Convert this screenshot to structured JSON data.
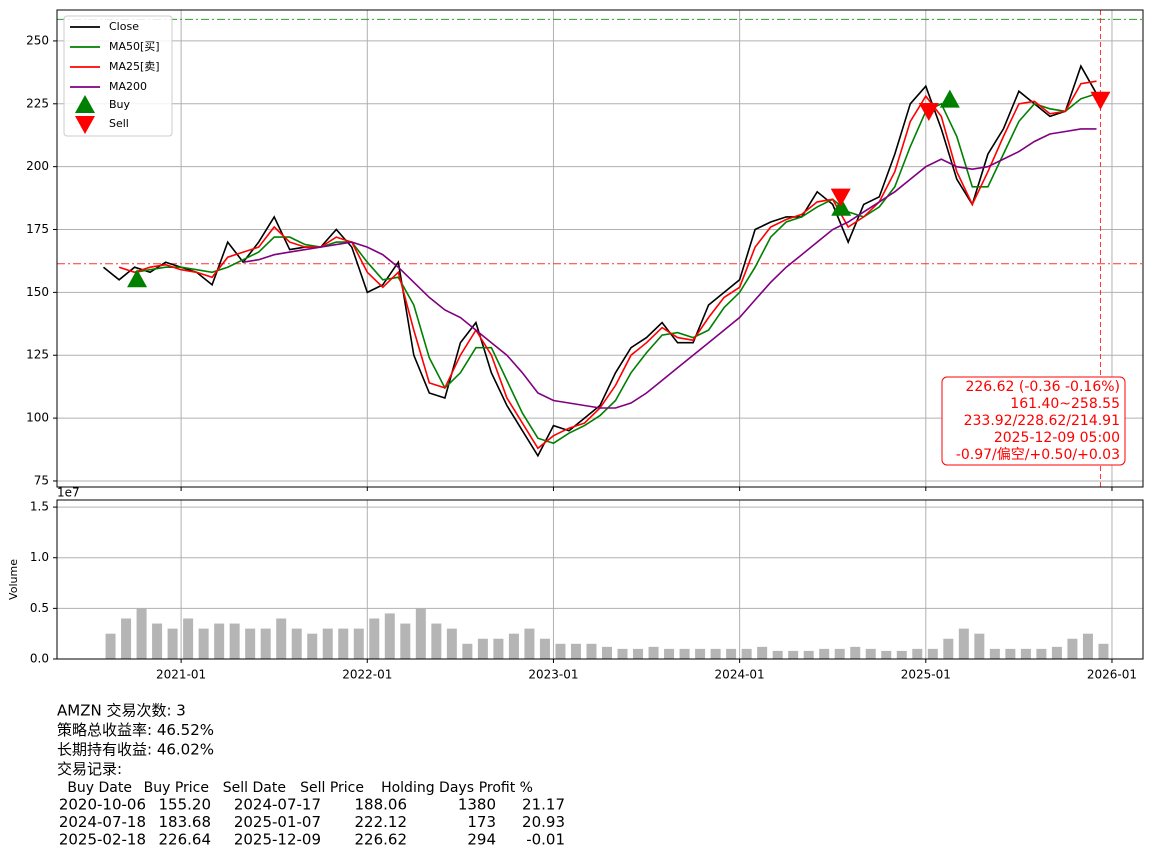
{
  "chart_data": [
    {
      "type": "line",
      "x": [
        "2020-08",
        "2020-09",
        "2020-10",
        "2020-11",
        "2020-12",
        "2021-01",
        "2021-02",
        "2021-03",
        "2021-04",
        "2021-05",
        "2021-06",
        "2021-07",
        "2021-08",
        "2021-09",
        "2021-10",
        "2021-11",
        "2021-12",
        "2022-01",
        "2022-02",
        "2022-03",
        "2022-04",
        "2022-05",
        "2022-06",
        "2022-07",
        "2022-08",
        "2022-09",
        "2022-10",
        "2022-11",
        "2022-12",
        "2023-01",
        "2023-02",
        "2023-03",
        "2023-04",
        "2023-05",
        "2023-06",
        "2023-07",
        "2023-08",
        "2023-09",
        "2023-10",
        "2023-11",
        "2023-12",
        "2024-01",
        "2024-02",
        "2024-03",
        "2024-04",
        "2024-05",
        "2024-06",
        "2024-07",
        "2024-08",
        "2024-09",
        "2024-10",
        "2024-11",
        "2024-12",
        "2025-01",
        "2025-02",
        "2025-03",
        "2025-04",
        "2025-05",
        "2025-06",
        "2025-07",
        "2025-08",
        "2025-09",
        "2025-10",
        "2025-11",
        "2025-12"
      ],
      "series": [
        {
          "name": "Close",
          "color": "#000000",
          "values": [
            160,
            155,
            160,
            158,
            162,
            160,
            158,
            153,
            170,
            162,
            170,
            180,
            167,
            168,
            168,
            175,
            168,
            150,
            153,
            162,
            125,
            110,
            108,
            130,
            138,
            118,
            105,
            95,
            85,
            97,
            95,
            100,
            105,
            118,
            128,
            132,
            138,
            130,
            130,
            145,
            150,
            155,
            175,
            178,
            180,
            180,
            190,
            185,
            170,
            185,
            188,
            205,
            225,
            232,
            215,
            195,
            185,
            205,
            215,
            230,
            225,
            220,
            222,
            240,
            229
          ]
        },
        {
          "name": "MA50[买]",
          "color": "#008000",
          "values": [
            null,
            null,
            158,
            159,
            160,
            160,
            159,
            158,
            160,
            163,
            166,
            172,
            172,
            169,
            168,
            170,
            170,
            162,
            155,
            156,
            145,
            124,
            112,
            118,
            128,
            128,
            115,
            102,
            92,
            90,
            94,
            97,
            101,
            107,
            118,
            126,
            133,
            134,
            132,
            135,
            144,
            150,
            160,
            172,
            178,
            180,
            184,
            187,
            182,
            180,
            184,
            192,
            208,
            222,
            225,
            212,
            192,
            192,
            205,
            218,
            225,
            223,
            222,
            227,
            229
          ]
        },
        {
          "name": "MA25[卖]",
          "color": "#ff0000",
          "values": [
            null,
            160,
            158,
            160,
            161,
            159,
            158,
            156,
            164,
            166,
            168,
            176,
            170,
            168,
            168,
            172,
            170,
            158,
            152,
            158,
            135,
            114,
            112,
            125,
            135,
            125,
            108,
            98,
            88,
            93,
            96,
            98,
            104,
            113,
            125,
            130,
            136,
            132,
            131,
            140,
            148,
            152,
            168,
            176,
            179,
            181,
            186,
            187,
            176,
            180,
            186,
            198,
            218,
            228,
            220,
            198,
            185,
            198,
            212,
            225,
            226,
            221,
            222,
            233,
            234
          ]
        },
        {
          "name": "MA200",
          "color": "#800080",
          "values": [
            null,
            null,
            null,
            null,
            null,
            null,
            null,
            null,
            null,
            162,
            163,
            165,
            166,
            167,
            168,
            169,
            170,
            168,
            165,
            160,
            154,
            148,
            143,
            140,
            135,
            130,
            125,
            118,
            110,
            107,
            106,
            105,
            104,
            104,
            106,
            110,
            115,
            120,
            125,
            130,
            135,
            140,
            147,
            154,
            160,
            165,
            170,
            175,
            178,
            182,
            186,
            190,
            195,
            200,
            203,
            200,
            199,
            200,
            203,
            206,
            210,
            213,
            214,
            215,
            215
          ]
        }
      ],
      "markers": [
        {
          "name": "Buy",
          "color": "#008000",
          "marker": "up",
          "x": [
            "2020-10-06",
            "2024-07-18",
            "2025-02-18"
          ],
          "values": [
            155.2,
            183.68,
            226.64
          ]
        },
        {
          "name": "Sell",
          "color": "#ff0000",
          "marker": "down",
          "x": [
            "2024-07-17",
            "2025-01-07",
            "2025-12-09"
          ],
          "values": [
            188.06,
            222.12,
            226.62
          ]
        }
      ],
      "hlines": [
        {
          "value": 258.55,
          "color": "#2ca02c"
        },
        {
          "value": 161.4,
          "color": "#ff3030"
        }
      ],
      "vline": "2025-12-09",
      "annotation_lines": [
        "226.62 (-0.36 -0.16%)",
        "161.40~258.55",
        "233.92/228.62/214.91",
        "2025-12-09 05:00",
        "-0.97/偏空/+0.50/+0.03"
      ],
      "xlim": [
        "2020-05",
        "2026-03"
      ],
      "xticks": [
        "2021-01",
        "2022-01",
        "2023-01",
        "2024-01",
        "2025-01",
        "2026-01"
      ],
      "ylim": [
        72.6,
        262.3
      ],
      "yticks": [
        75,
        100,
        125,
        150,
        175,
        200,
        225,
        250
      ],
      "grid": true,
      "legend": "upper left"
    },
    {
      "type": "bar",
      "ylabel": "Volume",
      "offset_label": "1e7",
      "x": [
        "2020-08",
        "2020-09",
        "2020-10",
        "2020-11",
        "2020-12",
        "2021-01",
        "2021-02",
        "2021-03",
        "2021-04",
        "2021-05",
        "2021-06",
        "2021-07",
        "2021-08",
        "2021-09",
        "2021-10",
        "2021-11",
        "2021-12",
        "2022-01",
        "2022-02",
        "2022-03",
        "2022-04",
        "2022-05",
        "2022-06",
        "2022-07",
        "2022-08",
        "2022-09",
        "2022-10",
        "2022-11",
        "2022-12",
        "2023-01",
        "2023-02",
        "2023-03",
        "2023-04",
        "2023-05",
        "2023-06",
        "2023-07",
        "2023-08",
        "2023-09",
        "2023-10",
        "2023-11",
        "2023-12",
        "2024-01",
        "2024-02",
        "2024-03",
        "2024-04",
        "2024-05",
        "2024-06",
        "2024-07",
        "2024-08",
        "2024-09",
        "2024-10",
        "2024-11",
        "2024-12",
        "2025-01",
        "2025-02",
        "2025-03",
        "2025-04",
        "2025-05",
        "2025-06",
        "2025-07",
        "2025-08",
        "2025-09",
        "2025-10",
        "2025-11",
        "2025-12"
      ],
      "values": [
        0.25,
        0.4,
        0.5,
        0.35,
        0.3,
        0.4,
        0.3,
        0.35,
        0.35,
        0.3,
        0.3,
        0.4,
        0.3,
        0.25,
        0.3,
        0.3,
        0.3,
        0.4,
        0.45,
        0.35,
        0.5,
        0.35,
        0.3,
        0.15,
        0.2,
        0.2,
        0.25,
        0.3,
        0.2,
        0.15,
        0.15,
        0.15,
        0.12,
        0.1,
        0.1,
        0.12,
        0.1,
        0.1,
        0.1,
        0.1,
        0.1,
        0.1,
        0.12,
        0.08,
        0.08,
        0.08,
        0.1,
        0.1,
        0.12,
        0.1,
        0.08,
        0.08,
        0.1,
        0.1,
        0.2,
        0.3,
        0.25,
        0.1,
        0.1,
        0.1,
        0.1,
        0.12,
        0.2,
        0.25,
        0.15
      ],
      "color": "#b5b5b5",
      "xlim": [
        "2020-05",
        "2026-03"
      ],
      "xticks": [
        "2021-01",
        "2022-01",
        "2023-01",
        "2024-01",
        "2025-01",
        "2026-01"
      ],
      "ylim": [
        0,
        1.57
      ],
      "yticks": [
        {
          "value": 0,
          "label": "0.0"
        },
        {
          "value": 0.5,
          "label": "0.5"
        },
        {
          "value": 1.0,
          "label": "1.0"
        },
        {
          "value": 1.5,
          "label": "1.5"
        }
      ],
      "grid": true
    }
  ],
  "report": {
    "lines": [
      "AMZN 交易次数: 3",
      "策略总收益率: 46.52%",
      "长期持有收益: 46.02%",
      "交易记录:"
    ],
    "table": {
      "columns": [
        "Buy Date",
        "Buy Price",
        "Sell Date",
        "Sell Price",
        "Holding Days",
        "Profit %"
      ],
      "rows": [
        [
          "2020-10-06",
          "155.20",
          "2024-07-17",
          "188.06",
          "1380",
          "21.17"
        ],
        [
          "2024-07-18",
          "183.68",
          "2025-01-07",
          "222.12",
          "173",
          "20.93"
        ],
        [
          "2025-02-18",
          "226.64",
          "2025-12-09",
          "226.62",
          "294",
          "-0.01"
        ]
      ]
    }
  }
}
